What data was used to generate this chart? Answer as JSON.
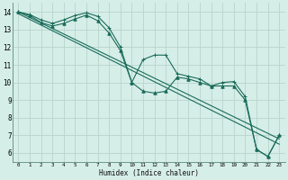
{
  "xlabel": "Humidex (Indice chaleur)",
  "background_color": "#d6eee8",
  "grid_color": "#b8d4cd",
  "line_color": "#1a6b5a",
  "xlim": [
    -0.5,
    23.5
  ],
  "ylim": [
    5.5,
    14.5
  ],
  "xticks": [
    0,
    1,
    2,
    3,
    4,
    5,
    6,
    7,
    8,
    9,
    10,
    11,
    12,
    13,
    14,
    15,
    16,
    17,
    18,
    19,
    20,
    21,
    22,
    23
  ],
  "yticks": [
    6,
    7,
    8,
    9,
    10,
    11,
    12,
    13,
    14
  ],
  "series": [
    {
      "x": [
        0,
        1,
        2,
        3,
        4,
        5,
        6,
        7,
        8,
        9,
        10,
        11,
        12,
        13,
        14,
        15,
        16,
        17,
        18,
        19,
        20,
        21,
        22,
        23
      ],
      "y": [
        14.0,
        13.85,
        13.55,
        13.35,
        13.55,
        13.8,
        13.95,
        13.75,
        13.1,
        12.0,
        10.0,
        11.3,
        11.55,
        11.55,
        10.5,
        10.35,
        10.2,
        9.8,
        10.0,
        10.05,
        9.2,
        6.2,
        5.8,
        7.0
      ],
      "marker": "+",
      "markersize": 3.5,
      "lw": 0.8
    },
    {
      "x": [
        0,
        1,
        2,
        3,
        4,
        5,
        6,
        7,
        8,
        9,
        10,
        11,
        12,
        13,
        14,
        15,
        16,
        17,
        18,
        19,
        20,
        21,
        22,
        23
      ],
      "y": [
        14.0,
        13.8,
        13.4,
        13.2,
        13.35,
        13.6,
        13.82,
        13.5,
        12.8,
        11.8,
        10.0,
        9.5,
        9.4,
        9.5,
        10.3,
        10.2,
        10.0,
        9.8,
        9.8,
        9.8,
        9.0,
        6.2,
        5.8,
        7.0
      ],
      "marker": "^",
      "markersize": 2.5,
      "lw": 0.8
    },
    {
      "x": [
        0,
        23
      ],
      "y": [
        14.0,
        6.8
      ],
      "marker": "",
      "markersize": 0,
      "lw": 0.8
    },
    {
      "x": [
        0,
        23
      ],
      "y": [
        13.9,
        6.5
      ],
      "marker": "",
      "markersize": 0,
      "lw": 0.8
    }
  ]
}
